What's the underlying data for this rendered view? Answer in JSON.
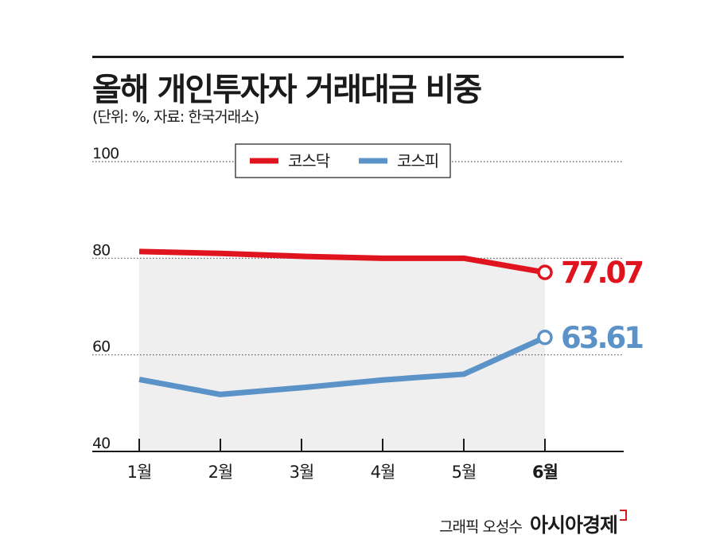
{
  "header": {
    "title": "올해 개인투자자 거래대금 비중",
    "subtitle": "(단위: %, 자료: 한국거래소)"
  },
  "credit": {
    "author": "그래픽 오성수",
    "brand": "아시아경제"
  },
  "colors": {
    "kosdaq": "#e0141e",
    "kospi": "#5b93c8",
    "plot_bg": "#efefef"
  },
  "chart_data": {
    "type": "line",
    "categories": [
      "1월",
      "2월",
      "3월",
      "4월",
      "5월",
      "6월"
    ],
    "series": [
      {
        "name": "코스닥",
        "values": [
          81.4,
          81.0,
          80.4,
          80.0,
          80.0,
          77.07
        ],
        "end_label": "77.07"
      },
      {
        "name": "코스피",
        "values": [
          54.9,
          51.8,
          53.2,
          54.8,
          56.0,
          63.61
        ],
        "end_label": "63.61"
      }
    ],
    "yticks": [
      40,
      60,
      80,
      100
    ],
    "ylim": [
      40,
      100
    ],
    "grid": true,
    "legend_position": "top-center"
  }
}
